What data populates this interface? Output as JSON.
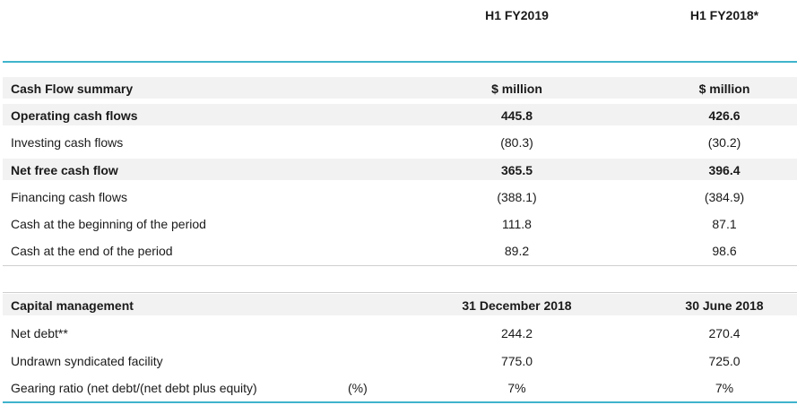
{
  "header": {
    "col1": "H1 FY2019",
    "col2": "H1 FY2018*"
  },
  "cash_flow": {
    "title": "Cash Flow summary",
    "unit_col1": "$ million",
    "unit_col2": "$ million",
    "rows": [
      {
        "label": "Operating cash flows",
        "col1": "445.8",
        "col2": "426.6"
      },
      {
        "label": "Investing cash flows",
        "col1": "(80.3)",
        "col2": "(30.2)"
      },
      {
        "label": "Net free cash flow",
        "col1": "365.5",
        "col2": "396.4"
      },
      {
        "label": "Financing cash flows",
        "col1": "(388.1)",
        "col2": "(384.9)"
      },
      {
        "label": "Cash at the beginning of the period",
        "col1": "111.8",
        "col2": "87.1"
      },
      {
        "label": "Cash at the end of the period",
        "col1": "89.2",
        "col2": "98.6"
      }
    ]
  },
  "capital": {
    "title": "Capital management",
    "date_col1": "31 December 2018",
    "date_col2": "30 June 2018",
    "rows": [
      {
        "label": "Net debt**",
        "unit": "",
        "col1": "244.2",
        "col2": "270.4"
      },
      {
        "label": "Undrawn syndicated facility",
        "unit": "",
        "col1": "775.0",
        "col2": "725.0"
      },
      {
        "label": "Gearing ratio (net debt/(net debt plus equity)",
        "unit": "(%)",
        "col1": "7%",
        "col2": "7%"
      }
    ]
  }
}
